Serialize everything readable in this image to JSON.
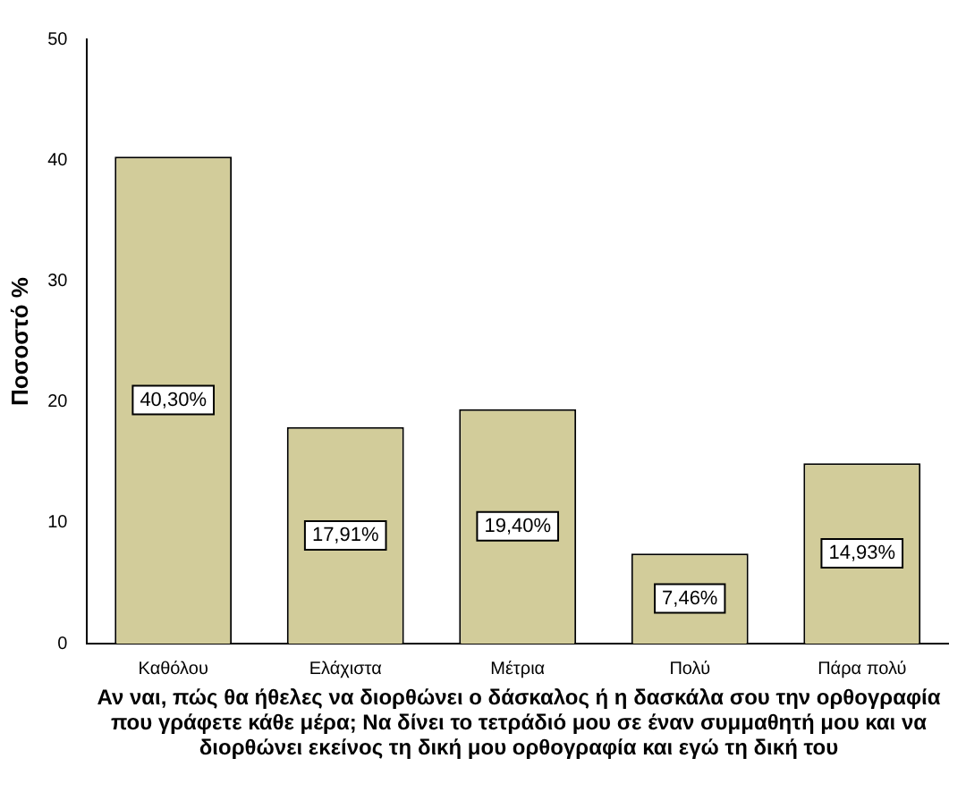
{
  "chart_data": {
    "type": "bar",
    "ylabel": "Ποσοστό %",
    "xlabel": "Αν ναι, πώς θα ήθελες να διορθώνει ο δάσκαλος ή η δασκάλα σου την ορθογραφία που γράφετε κάθε μέρα; Να δίνει το τετράδιό μου σε έναν συμμαθητή μου και να διορθώνει εκείνος τη δική μου ορθογραφία και εγώ τη δική του",
    "categories": [
      "Καθόλου",
      "Ελάχιστα",
      "Μέτρια",
      "Πολύ",
      "Πάρα πολύ"
    ],
    "values": [
      40.3,
      17.91,
      19.4,
      7.46,
      14.93
    ],
    "value_labels": [
      "40,30%",
      "17,91%",
      "19,40%",
      "7,46%",
      "14,93%"
    ],
    "color": "#d2cc9a",
    "ylim": [
      0,
      50
    ],
    "yticks": [
      0,
      10,
      20,
      30,
      40,
      50
    ],
    "grid": false,
    "legend": false
  }
}
